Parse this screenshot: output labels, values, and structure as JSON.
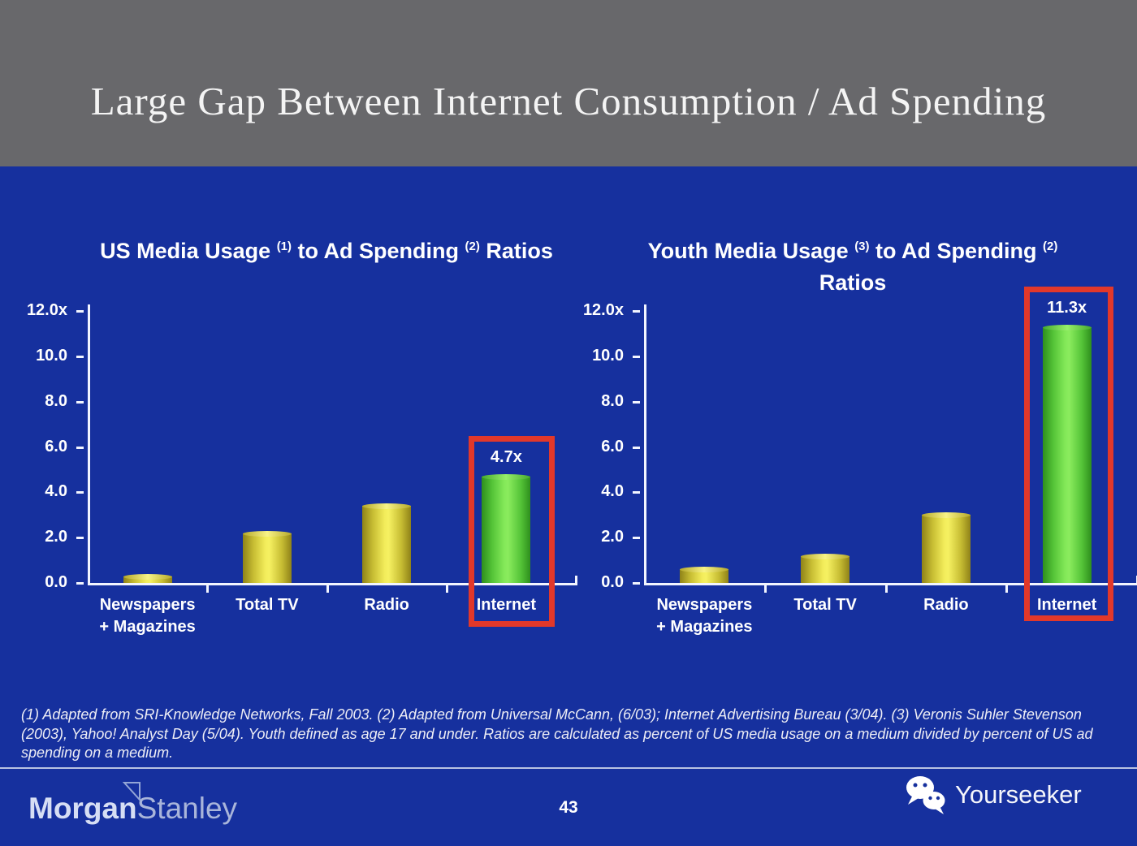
{
  "slide": {
    "header_title": "Large Gap Between Internet Consumption / Ad Spending",
    "footnote": "(1) Adapted from SRI-Knowledge Networks, Fall 2003.  (2) Adapted from Universal McCann, (6/03); Internet Advertising Bureau (3/04). (3) Veronis Suhler Stevenson (2003), Yahoo! Analyst Day (5/04).  Youth defined as age 17 and under.  Ratios are calculated as percent of US media usage on a medium divided by percent of US ad spending on a medium.",
    "page_number": "43"
  },
  "footer": {
    "brand_left": {
      "part1": "Morgan",
      "part2": "Stanley",
      "icon": "morgan-stanley-triangle-icon"
    },
    "brand_right": {
      "label": "Yourseeker",
      "icon": "wechat-bubbles-icon"
    }
  },
  "colors": {
    "header_bg": "#68686B",
    "body_bg": "#16309E",
    "bar_yellow": "#F2EC5A",
    "bar_green": "#83E858",
    "highlight_red": "#E2382A",
    "axis_white": "#F2F5FF",
    "text_white": "#FFFFFF"
  },
  "chart_data": [
    {
      "type": "bar",
      "title_segments": [
        {
          "text": "US Media Usage "
        },
        {
          "text": "(1)",
          "sup": true
        },
        {
          "text": " to Ad Spending "
        },
        {
          "text": "(2)",
          "sup": true
        },
        {
          "text": " Ratios"
        }
      ],
      "categories": [
        [
          "Newspapers",
          "+ Magazines"
        ],
        [
          "Total TV"
        ],
        [
          "Radio"
        ],
        [
          "Internet"
        ]
      ],
      "values": [
        0.3,
        2.2,
        3.4,
        4.7
      ],
      "bar_colors": [
        "yellow",
        "yellow",
        "yellow",
        "green"
      ],
      "yticks": [
        "12.0x",
        "10.0",
        "8.0",
        "6.0",
        "4.0",
        "2.0",
        "0.0"
      ],
      "ylim": [
        0,
        12
      ],
      "grid": false,
      "highlight": {
        "category_index": 3,
        "value_label": "4.7x"
      }
    },
    {
      "type": "bar",
      "title_segments": [
        {
          "text": "Youth Media Usage "
        },
        {
          "text": "(3)",
          "sup": true
        },
        {
          "text": " to Ad Spending "
        },
        {
          "text": "(2)",
          "sup": true
        },
        {
          "br": true
        },
        {
          "text": "Ratios"
        }
      ],
      "categories": [
        [
          "Newspapers",
          "+ Magazines"
        ],
        [
          "Total TV"
        ],
        [
          "Radio"
        ],
        [
          "Internet"
        ]
      ],
      "values": [
        0.6,
        1.2,
        3.0,
        11.3
      ],
      "bar_colors": [
        "yellow",
        "yellow",
        "yellow",
        "green"
      ],
      "yticks": [
        "12.0x",
        "10.0",
        "8.0",
        "6.0",
        "4.0",
        "2.0",
        "0.0"
      ],
      "ylim": [
        0,
        12
      ],
      "grid": false,
      "highlight": {
        "category_index": 3,
        "value_label": "11.3x"
      }
    }
  ]
}
